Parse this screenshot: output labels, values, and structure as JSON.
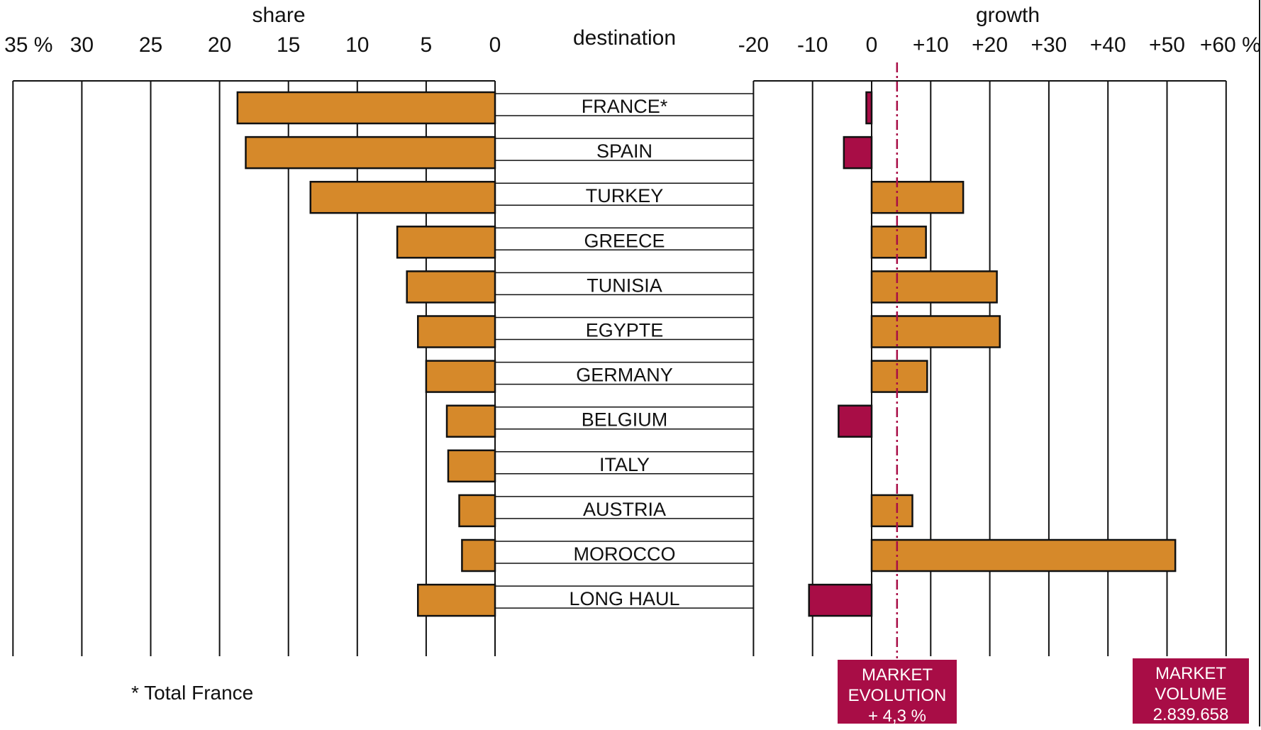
{
  "chart_data": {
    "type": "bar",
    "layout": "diverging-butterfly",
    "center_header": "destination",
    "categories": [
      "FRANCE*",
      "SPAIN",
      "TURKEY",
      "GREECE",
      "TUNISIA",
      "EGYPTE",
      "GERMANY",
      "BELGIUM",
      "ITALY",
      "AUSTRIA",
      "MOROCCO",
      "LONG HAUL"
    ],
    "share": {
      "title": "share",
      "unit": "%",
      "tick_values": [
        35,
        30,
        25,
        20,
        15,
        10,
        5,
        0
      ],
      "tick_labels": [
        "35 %",
        "30",
        "25",
        "20",
        "15",
        "10",
        "5",
        "0"
      ],
      "xlim": [
        35,
        0
      ],
      "values": [
        18.7,
        18.1,
        13.4,
        7.1,
        6.4,
        5.6,
        5.0,
        3.5,
        3.4,
        2.6,
        2.4,
        5.6
      ],
      "color": "#d6892a"
    },
    "growth": {
      "title": "growth",
      "unit": "%",
      "tick_values": [
        -20,
        -10,
        0,
        10,
        20,
        30,
        40,
        50,
        60
      ],
      "tick_labels": [
        "-20",
        "-10",
        "0",
        "+10",
        "+20",
        "+30",
        "+40",
        "+50",
        "+60 %"
      ],
      "xlim": [
        -20,
        60
      ],
      "values": [
        -0.9,
        -4.7,
        15.5,
        9.2,
        21.2,
        21.7,
        9.4,
        -5.6,
        null,
        6.9,
        51.4,
        -10.6
      ],
      "positive_color": "#d6892a",
      "negative_color": "#a80d46",
      "reference_line": {
        "value": 4.3
      }
    },
    "annotations": {
      "market_evolution": [
        "MARKET",
        "EVOLUTION",
        "+ 4,3 %"
      ],
      "market_volume": [
        "MARKET",
        "VOLUME",
        "2.839.658"
      ]
    },
    "footnote": "* Total France",
    "grid": true
  }
}
